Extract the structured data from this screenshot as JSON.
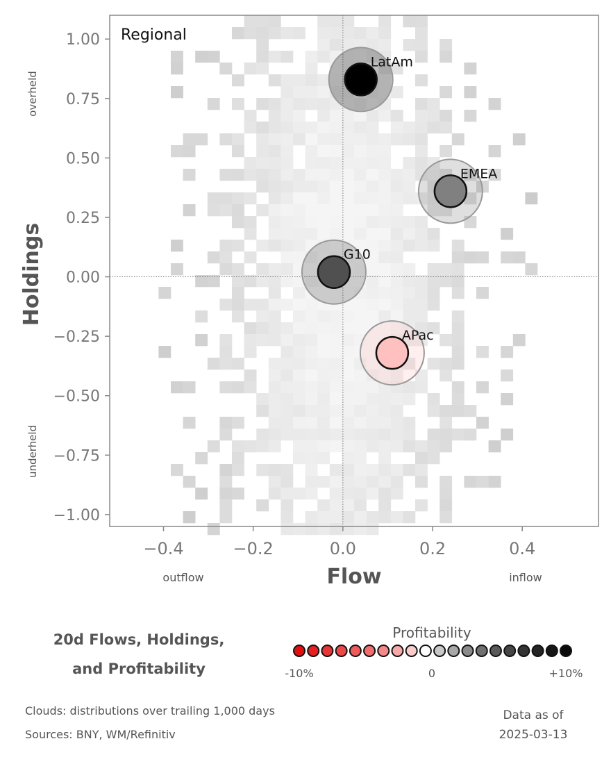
{
  "chart_data": {
    "type": "scatter",
    "panel_label": "Regional",
    "xlabel": "Flow",
    "ylabel": "Holdings",
    "xlim": [
      -0.52,
      0.57
    ],
    "ylim": [
      -1.05,
      1.1
    ],
    "x_ticks": [
      -0.4,
      -0.2,
      0.0,
      0.2,
      0.4
    ],
    "x_tick_labels": [
      "−0.4",
      "−0.2",
      "0.0",
      "0.2",
      "0.4"
    ],
    "y_ticks": [
      1.0,
      0.75,
      0.5,
      0.25,
      0.0,
      -0.25,
      -0.5,
      -0.75,
      -1.0
    ],
    "y_tick_labels": [
      "1.00",
      "0.75",
      "0.50",
      "0.25",
      "0.00",
      "−0.25",
      "−0.50",
      "−0.75",
      "−1.00"
    ],
    "x_annotations": {
      "left": "outflow",
      "right": "inflow"
    },
    "y_annotations": {
      "top": "overheld",
      "bottom": "underheld"
    },
    "reference_lines": {
      "x": 0.0,
      "y": 0.0
    },
    "points": [
      {
        "label": "LatAm",
        "x": 0.04,
        "y": 0.83,
        "color": "#000000"
      },
      {
        "label": "EMEA",
        "x": 0.24,
        "y": 0.36,
        "color": "#808080"
      },
      {
        "label": "G10",
        "x": -0.02,
        "y": 0.02,
        "color": "#505050"
      },
      {
        "label": "APac",
        "x": 0.11,
        "y": -0.32,
        "color": "#ffc0c0"
      }
    ],
    "cloud": {
      "description_label": "Clouds:  distributions over trailing 1,000 days"
    },
    "legend": {
      "title": "Profitability",
      "tick_labels": [
        "-10%",
        "0",
        "+10%"
      ],
      "colors": [
        "#e01010",
        "#e42020",
        "#e83535",
        "#ec4848",
        "#ef5a5a",
        "#f26e6e",
        "#f58888",
        "#f8a8a8",
        "#fbcccc",
        "#ffffff",
        "#c8c8c8",
        "#a8a8a8",
        "#8a8a8a",
        "#707070",
        "#5a5a5a",
        "#464646",
        "#343434",
        "#242424",
        "#161616",
        "#0a0a0a"
      ]
    }
  },
  "footer": {
    "title_line1": "20d Flows, Holdings,",
    "title_line2": "and Profitability",
    "clouds_note": "Clouds:  distributions over trailing 1,000 days",
    "sources": "Sources:  BNY, WM/Refinitiv",
    "as_of_label": "Data as of",
    "as_of_date": "2025-03-13"
  }
}
